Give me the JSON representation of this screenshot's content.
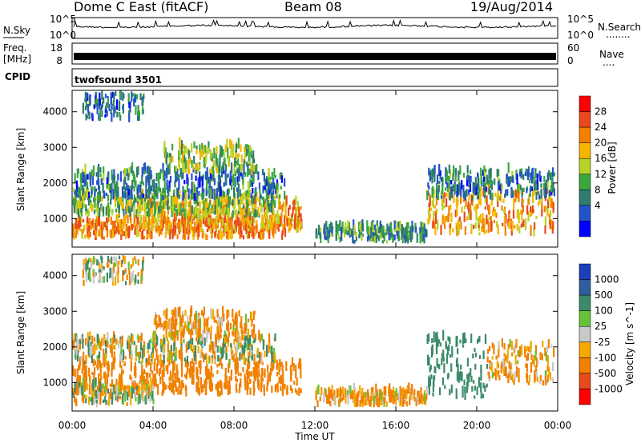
{
  "header": {
    "title": "Dome C East (fitACF)",
    "beam": "Beam 08",
    "date": "19/Aug/2014"
  },
  "sky_panel": {
    "left_label": "N.Sky",
    "right_label": "N.Search",
    "right_dots": "........",
    "tick_top": "10^5",
    "tick_bottom": "10^0"
  },
  "freq_panel": {
    "left_label_1": "Freq.",
    "left_label_2": "[MHz]",
    "ticks_left": [
      "18",
      "8"
    ],
    "ticks_right": [
      "60",
      "0"
    ],
    "right_label": "Nave",
    "right_dots": "...."
  },
  "cpid": {
    "label": "CPID",
    "value": "twofsound 3501"
  },
  "power_panel": {
    "ylabel": "Slant Range [km]",
    "yticks": [
      "4000",
      "3000",
      "2000",
      "1000"
    ],
    "colorbar_label": "Power [dB]",
    "colorbar_ticks": [
      "28",
      "24",
      "20",
      "16",
      "12",
      "8",
      "4"
    ],
    "colors": [
      "#0000ff",
      "#2453c8",
      "#2e7d6e",
      "#3aa73a",
      "#b8d22a",
      "#f7b500",
      "#f37f00",
      "#e8481e",
      "#ff0000"
    ]
  },
  "velocity_panel": {
    "ylabel": "Slant Range [km]",
    "yticks": [
      "4000",
      "3000",
      "2000",
      "1000"
    ],
    "colorbar_label": "Velocity [m s^-1]",
    "colorbar_ticks": [
      "1000",
      "500",
      "100",
      "25",
      "-25",
      "-100",
      "-500",
      "-1000"
    ],
    "colors": [
      "#1c3fb8",
      "#2e5ea0",
      "#3b8a6a",
      "#66c23a",
      "#c8c8c8",
      "#f5a800",
      "#f08000",
      "#e84a1a",
      "#ff0000"
    ]
  },
  "x_axis": {
    "label": "Time UT",
    "ticks": [
      "00:00",
      "04:00",
      "08:00",
      "12:00",
      "16:00",
      "20:00",
      "00:00"
    ]
  },
  "chart_data": [
    {
      "type": "heatmap",
      "title": "Power",
      "xlabel": "Time UT",
      "ylabel": "Slant Range [km]",
      "xlim": [
        0,
        24
      ],
      "ylim": [
        200,
        4600
      ],
      "colorbar": {
        "label": "Power [dB]",
        "ticks": [
          4,
          8,
          12,
          16,
          20,
          24,
          28
        ]
      },
      "regions": [
        {
          "t0": 0.0,
          "t1": 10.5,
          "r0": 400,
          "r1": 900,
          "value": 26
        },
        {
          "t0": 3.0,
          "t1": 11.3,
          "r0": 600,
          "r1": 1400,
          "value": 24
        },
        {
          "t0": 0.0,
          "t1": 10.0,
          "r0": 1000,
          "r1": 1600,
          "value": 16
        },
        {
          "t0": 0.0,
          "t1": 10.5,
          "r0": 1500,
          "r1": 2300,
          "value": 10
        },
        {
          "t0": 4.5,
          "t1": 9.0,
          "r0": 2200,
          "r1": 3000,
          "value": 16
        },
        {
          "t0": 0.5,
          "t1": 3.5,
          "r0": 3700,
          "r1": 4500,
          "value": 8
        },
        {
          "t0": 17.5,
          "t1": 23.8,
          "r0": 500,
          "r1": 1700,
          "value": 24
        },
        {
          "t0": 17.5,
          "t1": 23.8,
          "r0": 1500,
          "r1": 2300,
          "value": 10
        },
        {
          "t0": 12.0,
          "t1": 17.5,
          "r0": 300,
          "r1": 700,
          "value": 12
        }
      ]
    },
    {
      "type": "heatmap",
      "title": "Velocity",
      "xlabel": "Time UT",
      "ylabel": "Slant Range [km]",
      "xlim": [
        0,
        24
      ],
      "ylim": [
        200,
        4600
      ],
      "colorbar": {
        "label": "Velocity [m s^-1]",
        "ticks": [
          -1000,
          -500,
          -100,
          -25,
          25,
          100,
          500,
          1000
        ]
      },
      "regions": [
        {
          "t0": 0.0,
          "t1": 11.3,
          "r0": 600,
          "r1": 1500,
          "value": -300
        },
        {
          "t0": 0.0,
          "t1": 10.0,
          "r0": 1500,
          "r1": 2200,
          "value": 0
        },
        {
          "t0": 4.0,
          "t1": 9.0,
          "r0": 2200,
          "r1": 2900,
          "value": -150
        },
        {
          "t0": 0.0,
          "t1": 4.0,
          "r0": 300,
          "r1": 900,
          "value": 0
        },
        {
          "t0": 0.5,
          "t1": 3.5,
          "r0": 3700,
          "r1": 4500,
          "value": 0
        },
        {
          "t0": 17.5,
          "t1": 20.5,
          "r0": 500,
          "r1": 2200,
          "value": 300
        },
        {
          "t0": 20.5,
          "t1": 23.8,
          "r0": 900,
          "r1": 2000,
          "value": -150
        },
        {
          "t0": 12.0,
          "t1": 17.5,
          "r0": 300,
          "r1": 700,
          "value": -150
        }
      ]
    }
  ]
}
